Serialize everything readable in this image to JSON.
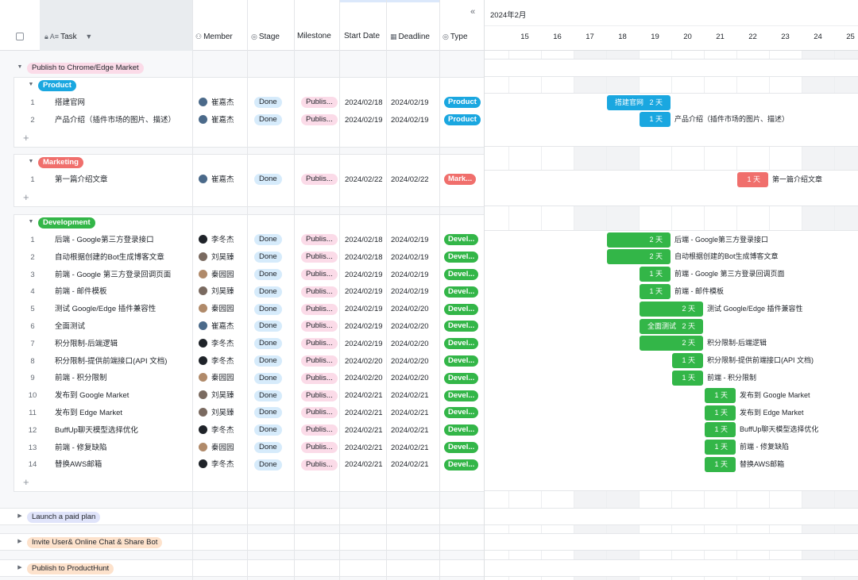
{
  "header": {
    "task": "Task",
    "member": "Member",
    "stage": "Stage",
    "milestone": "Milestone",
    "start_date": "Start Date",
    "deadline": "Deadline",
    "type": "Type",
    "collapse": "«"
  },
  "gantt": {
    "month": "2024年2月",
    "first_day_partial": "4",
    "days": [
      "15",
      "16",
      "17",
      "18",
      "19",
      "20",
      "21",
      "22",
      "23",
      "24",
      "25"
    ],
    "weekend_days": [
      "17",
      "18",
      "24",
      "25"
    ]
  },
  "top_group": {
    "label": "Publish to Chrome/Edge Market"
  },
  "subgroups": [
    {
      "label": "Product",
      "tag_color": "#1aa7e0",
      "rows": [
        {
          "num": "1",
          "task": "搭建官网",
          "member": "崔嘉杰",
          "avatar_color": "#4b6a8a",
          "stage": "Done",
          "milestone": "Publis...",
          "start": "2024/02/18",
          "deadline": "2024/02/19",
          "type": "Product",
          "type_color": "#1aa7e0",
          "bar_inside": "搭建官网",
          "bar_days": "2 天",
          "bar_outside": ""
        },
        {
          "num": "2",
          "task": "产品介绍（插件市场的图片、描述）",
          "member": "崔嘉杰",
          "avatar_color": "#4b6a8a",
          "stage": "Done",
          "milestone": "Publis...",
          "start": "2024/02/19",
          "deadline": "2024/02/19",
          "type": "Product",
          "type_color": "#1aa7e0",
          "bar_inside": "",
          "bar_days": "1 天",
          "bar_outside": "产品介绍（插件市场的图片、描述）"
        }
      ]
    },
    {
      "label": "Marketing",
      "tag_color": "#f06f6c",
      "rows": [
        {
          "num": "1",
          "task": "第一篇介绍文章",
          "member": "崔嘉杰",
          "avatar_color": "#4b6a8a",
          "stage": "Done",
          "milestone": "Publis...",
          "start": "2024/02/22",
          "deadline": "2024/02/22",
          "type": "Mark...",
          "type_color": "#f06f6c",
          "bar_inside": "",
          "bar_days": "1 天",
          "bar_outside": "第一篇介绍文章"
        }
      ]
    },
    {
      "label": "Development",
      "tag_color": "#33b648",
      "rows": [
        {
          "num": "1",
          "task": "后端 - Google第三方登录接口",
          "member": "李冬杰",
          "avatar_color": "#1f2329",
          "stage": "Done",
          "milestone": "Publis...",
          "start": "2024/02/18",
          "deadline": "2024/02/19",
          "type": "Devel...",
          "type_color": "#33b648",
          "bar_inside": "",
          "bar_days": "2 天",
          "bar_outside": "后端 - Google第三方登录接口"
        },
        {
          "num": "2",
          "task": "自动根据创建的Bot生成博客文章",
          "member": "刘昊臻",
          "avatar_color": "#7a6a60",
          "stage": "Done",
          "milestone": "Publis...",
          "start": "2024/02/18",
          "deadline": "2024/02/19",
          "type": "Devel...",
          "type_color": "#33b648",
          "bar_inside": "",
          "bar_days": "2 天",
          "bar_outside": "自动根据创建的Bot生成博客文章"
        },
        {
          "num": "3",
          "task": "前端 - Google 第三方登录回调页面",
          "member": "秦园园",
          "avatar_color": "#b08a6a",
          "stage": "Done",
          "milestone": "Publis...",
          "start": "2024/02/19",
          "deadline": "2024/02/19",
          "type": "Devel...",
          "type_color": "#33b648",
          "bar_inside": "",
          "bar_days": "1 天",
          "bar_outside": "前端 - Google 第三方登录回调页面"
        },
        {
          "num": "4",
          "task": "前端 - 邮件模板",
          "member": "刘昊臻",
          "avatar_color": "#7a6a60",
          "stage": "Done",
          "milestone": "Publis...",
          "start": "2024/02/19",
          "deadline": "2024/02/19",
          "type": "Devel...",
          "type_color": "#33b648",
          "bar_inside": "",
          "bar_days": "1 天",
          "bar_outside": "前端 - 邮件模板"
        },
        {
          "num": "5",
          "task": "测试 Google/Edge 插件兼容性",
          "member": "秦园园",
          "avatar_color": "#b08a6a",
          "stage": "Done",
          "milestone": "Publis...",
          "start": "2024/02/19",
          "deadline": "2024/02/20",
          "type": "Devel...",
          "type_color": "#33b648",
          "bar_inside": "",
          "bar_days": "2 天",
          "bar_outside": "测试 Google/Edge 插件兼容性"
        },
        {
          "num": "6",
          "task": "全面测试",
          "member": "崔嘉杰",
          "avatar_color": "#4b6a8a",
          "stage": "Done",
          "milestone": "Publis...",
          "start": "2024/02/19",
          "deadline": "2024/02/20",
          "type": "Devel...",
          "type_color": "#33b648",
          "bar_inside": "全面测试",
          "bar_days": "2 天",
          "bar_outside": ""
        },
        {
          "num": "7",
          "task": "积分限制-后端逻辑",
          "member": "李冬杰",
          "avatar_color": "#1f2329",
          "stage": "Done",
          "milestone": "Publis...",
          "start": "2024/02/19",
          "deadline": "2024/02/20",
          "type": "Devel...",
          "type_color": "#33b648",
          "bar_inside": "",
          "bar_days": "2 天",
          "bar_outside": "积分限制-后端逻辑"
        },
        {
          "num": "8",
          "task": "积分限制-提供前端接口(API 文档)",
          "member": "李冬杰",
          "avatar_color": "#1f2329",
          "stage": "Done",
          "milestone": "Publis...",
          "start": "2024/02/20",
          "deadline": "2024/02/20",
          "type": "Devel...",
          "type_color": "#33b648",
          "bar_inside": "",
          "bar_days": "1 天",
          "bar_outside": "积分限制-提供前端接口(API 文档)"
        },
        {
          "num": "9",
          "task": "前端 - 积分限制",
          "member": "秦园园",
          "avatar_color": "#b08a6a",
          "stage": "Done",
          "milestone": "Publis...",
          "start": "2024/02/20",
          "deadline": "2024/02/20",
          "type": "Devel...",
          "type_color": "#33b648",
          "bar_inside": "",
          "bar_days": "1 天",
          "bar_outside": "前端 - 积分限制"
        },
        {
          "num": "10",
          "task": "发布到 Google Market",
          "member": "刘昊臻",
          "avatar_color": "#7a6a60",
          "stage": "Done",
          "milestone": "Publis...",
          "start": "2024/02/21",
          "deadline": "2024/02/21",
          "type": "Devel...",
          "type_color": "#33b648",
          "bar_inside": "",
          "bar_days": "1 天",
          "bar_outside": "发布到 Google Market"
        },
        {
          "num": "11",
          "task": "发布到 Edge Market",
          "member": "刘昊臻",
          "avatar_color": "#7a6a60",
          "stage": "Done",
          "milestone": "Publis...",
          "start": "2024/02/21",
          "deadline": "2024/02/21",
          "type": "Devel...",
          "type_color": "#33b648",
          "bar_inside": "",
          "bar_days": "1 天",
          "bar_outside": "发布到 Edge Market"
        },
        {
          "num": "12",
          "task": "BuffUp聊天模型选择优化",
          "member": "李冬杰",
          "avatar_color": "#1f2329",
          "stage": "Done",
          "milestone": "Publis...",
          "start": "2024/02/21",
          "deadline": "2024/02/21",
          "type": "Devel...",
          "type_color": "#33b648",
          "bar_inside": "",
          "bar_days": "1 天",
          "bar_outside": "BuffUp聊天模型选择优化"
        },
        {
          "num": "13",
          "task": "前端 - 修复缺陷",
          "member": "秦园园",
          "avatar_color": "#b08a6a",
          "stage": "Done",
          "milestone": "Publis...",
          "start": "2024/02/21",
          "deadline": "2024/02/21",
          "type": "Devel...",
          "type_color": "#33b648",
          "bar_inside": "",
          "bar_days": "1 天",
          "bar_outside": "前端 - 修复缺陷"
        },
        {
          "num": "14",
          "task": "替换AWS邮箱",
          "member": "李冬杰",
          "avatar_color": "#1f2329",
          "stage": "Done",
          "milestone": "Publis...",
          "start": "2024/02/21",
          "deadline": "2024/02/21",
          "type": "Devel...",
          "type_color": "#33b648",
          "bar_inside": "",
          "bar_days": "1 天",
          "bar_outside": "替换AWS邮箱"
        }
      ]
    }
  ],
  "collapsed_groups": [
    {
      "label": "Launch a paid plan",
      "color": "lav"
    },
    {
      "label": "Invite User& Online Chat & Share Bot",
      "color": "peach"
    },
    {
      "label": "Publish to ProductHunt",
      "color": "peach"
    }
  ],
  "icons": {
    "lock": "lock-icon",
    "text": "text-type-icon",
    "member": "person-icon",
    "stage": "status-icon",
    "deadline": "calendar-icon",
    "type": "status-icon"
  }
}
